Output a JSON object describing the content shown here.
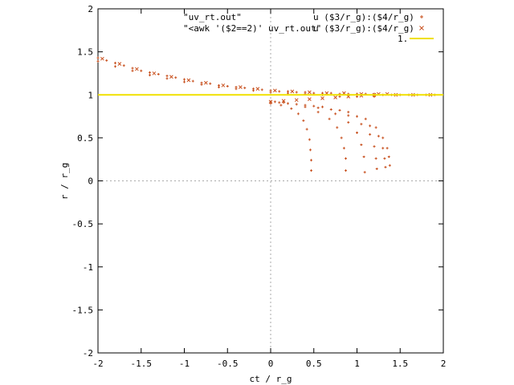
{
  "chart_data": {
    "type": "scatter",
    "xlabel": "ct / r_g",
    "ylabel": "r / r_g",
    "xlim": [
      -2,
      2
    ],
    "ylim": [
      -2,
      2
    ],
    "xticks": [
      "-2",
      "-1.5",
      "-1",
      "-0.5",
      "0",
      "0.5",
      "1",
      "1.5",
      "2"
    ],
    "yticks": [
      "-2",
      "-1.5",
      "-1",
      "-0.5",
      "0",
      "0.5",
      "1",
      "1.5",
      "2"
    ],
    "zero_axes": true,
    "legend_position": "top-right",
    "colors": {
      "points": "#c8501e",
      "line": "#f0e000",
      "axes": "#000000",
      "zero": "#aaaaaa"
    },
    "series": [
      {
        "name": "\"uv_rt.out\"",
        "using": "u ($3/r_g):($4/r_g)",
        "marker": "plus",
        "x": [
          -2.0,
          -1.9,
          -1.8,
          -1.7,
          -1.6,
          -1.5,
          -1.4,
          -1.3,
          -1.2,
          -1.1,
          -1.0,
          -0.9,
          -0.8,
          -0.7,
          -0.6,
          -0.5,
          -0.4,
          -0.3,
          -0.2,
          -0.1,
          0.0,
          0.1,
          0.2,
          0.3,
          0.4,
          0.5,
          0.6,
          0.7,
          0.8,
          0.9,
          1.0,
          1.1,
          1.2,
          1.3,
          1.4,
          1.5,
          1.6,
          1.7,
          1.8,
          1.9,
          -2.0,
          -1.8,
          -1.6,
          -1.4,
          -1.2,
          -1.0,
          -0.8,
          -0.6,
          -0.4,
          -0.2,
          0.0,
          0.2,
          0.4,
          0.6,
          0.8,
          1.0,
          1.2,
          0.0,
          0.12,
          0.24,
          0.32,
          0.38,
          0.42,
          0.45,
          0.46,
          0.47,
          0.47,
          0.0,
          0.2,
          0.4,
          0.55,
          0.68,
          0.77,
          0.82,
          0.85,
          0.87,
          0.87,
          0.05,
          0.3,
          0.55,
          0.75,
          0.9,
          1.0,
          1.05,
          1.08,
          1.09,
          0.1,
          0.4,
          0.7,
          0.9,
          1.05,
          1.15,
          1.2,
          1.22,
          1.23,
          0.15,
          0.5,
          0.8,
          1.0,
          1.15,
          1.25,
          1.3,
          1.32,
          1.33,
          0.2,
          0.6,
          0.9,
          1.1,
          1.22,
          1.3,
          1.35,
          1.37,
          1.38
        ],
        "y": [
          1.43,
          1.4,
          1.37,
          1.34,
          1.31,
          1.28,
          1.26,
          1.24,
          1.22,
          1.2,
          1.18,
          1.16,
          1.14,
          1.13,
          1.11,
          1.1,
          1.09,
          1.08,
          1.07,
          1.06,
          1.05,
          1.04,
          1.04,
          1.03,
          1.03,
          1.02,
          1.02,
          1.02,
          1.01,
          1.01,
          1.01,
          1.01,
          1.01,
          1.0,
          1.0,
          1.0,
          1.0,
          1.0,
          1.0,
          1.0,
          1.39,
          1.33,
          1.28,
          1.23,
          1.19,
          1.15,
          1.12,
          1.09,
          1.07,
          1.05,
          1.03,
          1.02,
          1.01,
          1.0,
          0.98,
          0.98,
          0.98,
          0.9,
          0.88,
          0.84,
          0.78,
          0.7,
          0.6,
          0.48,
          0.36,
          0.24,
          0.12,
          0.92,
          0.9,
          0.86,
          0.8,
          0.72,
          0.62,
          0.5,
          0.38,
          0.26,
          0.12,
          0.92,
          0.89,
          0.85,
          0.78,
          0.68,
          0.56,
          0.42,
          0.28,
          0.1,
          0.91,
          0.88,
          0.83,
          0.76,
          0.66,
          0.54,
          0.4,
          0.26,
          0.14,
          0.91,
          0.87,
          0.82,
          0.75,
          0.64,
          0.52,
          0.38,
          0.26,
          0.16,
          0.9,
          0.86,
          0.8,
          0.72,
          0.62,
          0.5,
          0.38,
          0.28,
          0.18
        ]
      },
      {
        "name": "\"<awk '($2==2)' uv_rt.out\"",
        "using": "u ($3/r_g):($4/r_g)",
        "marker": "cross",
        "x": [
          -1.95,
          -1.75,
          -1.55,
          -1.35,
          -1.15,
          -0.95,
          -0.75,
          -0.55,
          -0.35,
          -0.15,
          0.05,
          0.25,
          0.45,
          0.65,
          0.85,
          1.05,
          1.25,
          1.45,
          1.65,
          1.85,
          0.0,
          0.15,
          0.3,
          0.45,
          0.6,
          0.75,
          0.9,
          1.05,
          1.2,
          1.35
        ],
        "y": [
          1.42,
          1.36,
          1.3,
          1.25,
          1.21,
          1.17,
          1.14,
          1.11,
          1.09,
          1.07,
          1.05,
          1.04,
          1.03,
          1.02,
          1.02,
          1.01,
          1.01,
          1.0,
          1.0,
          1.0,
          0.92,
          0.93,
          0.94,
          0.95,
          0.96,
          0.97,
          0.98,
          0.99,
          1.0,
          1.01
        ]
      },
      {
        "name": "1.",
        "type": "line",
        "value": 1.0
      }
    ]
  }
}
